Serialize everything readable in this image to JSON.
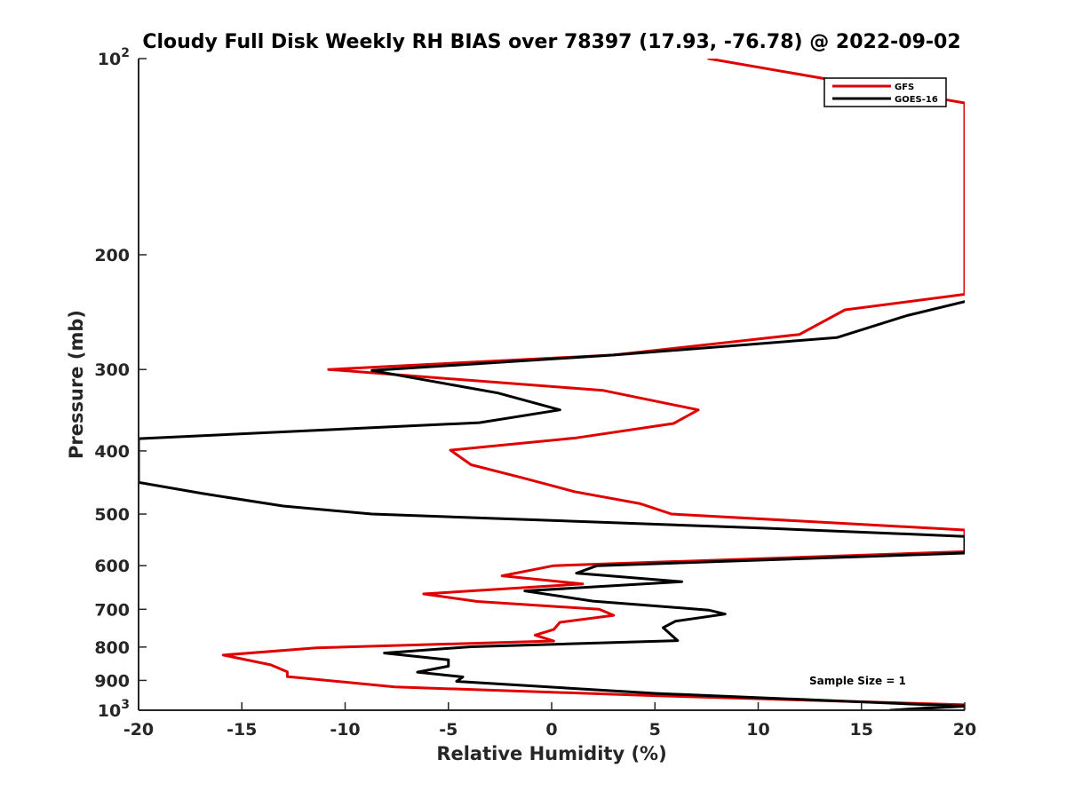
{
  "chart_data": {
    "type": "line",
    "title": "Cloudy Full Disk Weekly RH BIAS over 78397 (17.93, -76.78) @ 2022-09-02",
    "xlabel": "Relative Humidity (%)",
    "ylabel": "Pressure (mb)",
    "xlim": [
      -20,
      20
    ],
    "ylim": [
      100,
      1000
    ],
    "yscale": "log",
    "y_reversed": true,
    "grid": false,
    "legend_position": "top-right",
    "x_ticks": [
      "-20",
      "-15",
      "-10",
      "-5",
      "0",
      "5",
      "10",
      "15",
      "20"
    ],
    "y_ticks": [
      {
        "value": 100,
        "base": "10",
        "exp": "2"
      },
      {
        "value": 200,
        "label": "200"
      },
      {
        "value": 300,
        "label": "300"
      },
      {
        "value": 400,
        "label": "400"
      },
      {
        "value": 500,
        "label": "500"
      },
      {
        "value": 600,
        "label": "600"
      },
      {
        "value": 700,
        "label": "700"
      },
      {
        "value": 800,
        "label": "800"
      },
      {
        "value": 900,
        "label": "900"
      },
      {
        "value": 1000,
        "base": "10",
        "exp": "3"
      }
    ],
    "annotation": "Sample Size = 1",
    "series": [
      {
        "name": "GFS",
        "color": "#e00000",
        "points": [
          [
            7.6,
            100
          ],
          [
            20,
            117
          ],
          [
            20,
            230
          ],
          [
            14.2,
            243
          ],
          [
            12,
            265
          ],
          [
            3,
            285
          ],
          [
            -10.8,
            300
          ],
          [
            2.5,
            323
          ],
          [
            7.1,
            346
          ],
          [
            5.9,
            363
          ],
          [
            1.2,
            382
          ],
          [
            -4.9,
            399
          ],
          [
            -3.9,
            420
          ],
          [
            -1.4,
            440
          ],
          [
            1.1,
            462
          ],
          [
            4.3,
            482
          ],
          [
            5.8,
            500
          ],
          [
            20,
            529
          ],
          [
            20,
            571
          ],
          [
            0.1,
            600
          ],
          [
            -2.4,
            622
          ],
          [
            1.5,
            640
          ],
          [
            -6.2,
            663
          ],
          [
            -3.6,
            681
          ],
          [
            2.3,
            700
          ],
          [
            3.0,
            715
          ],
          [
            0.4,
            733
          ],
          [
            0.1,
            752
          ],
          [
            -0.8,
            767
          ],
          [
            0.1,
            783
          ],
          [
            -11.4,
            802
          ],
          [
            -15.9,
            823
          ],
          [
            -13.6,
            852
          ],
          [
            -12.8,
            873
          ],
          [
            -12.8,
            888
          ],
          [
            -7.6,
            921
          ],
          [
            5,
            950
          ],
          [
            20,
            981
          ],
          [
            20,
            990
          ],
          [
            20,
            1000
          ]
        ]
      },
      {
        "name": "GOES-16",
        "color": "#000000",
        "points": [
          [
            20,
            236
          ],
          [
            17.2,
            248
          ],
          [
            13.8,
            268
          ],
          [
            3,
            285
          ],
          [
            -8.7,
            301
          ],
          [
            -2.6,
            326
          ],
          [
            0.4,
            346
          ],
          [
            -3.5,
            362
          ],
          [
            -20,
            383
          ],
          [
            -20,
            447
          ],
          [
            -16.9,
            465
          ],
          [
            -13,
            486
          ],
          [
            -8.7,
            500
          ],
          [
            10,
            525
          ],
          [
            20,
            541
          ],
          [
            20,
            574
          ],
          [
            2.2,
            600
          ],
          [
            1.2,
            616
          ],
          [
            6.3,
            635
          ],
          [
            -1.3,
            656
          ],
          [
            2.0,
            680
          ],
          [
            7.6,
            702
          ],
          [
            8.4,
            712
          ],
          [
            6.0,
            730
          ],
          [
            5.4,
            747
          ],
          [
            6.1,
            782
          ],
          [
            -3.9,
            799
          ],
          [
            -8.1,
            817
          ],
          [
            -5,
            837
          ],
          [
            -5,
            856
          ],
          [
            -6.5,
            874
          ],
          [
            -4.3,
            889
          ],
          [
            -4.6,
            903
          ],
          [
            5,
            942
          ],
          [
            20,
            986
          ],
          [
            16.4,
            1000
          ],
          [
            20,
            984
          ]
        ]
      }
    ]
  }
}
